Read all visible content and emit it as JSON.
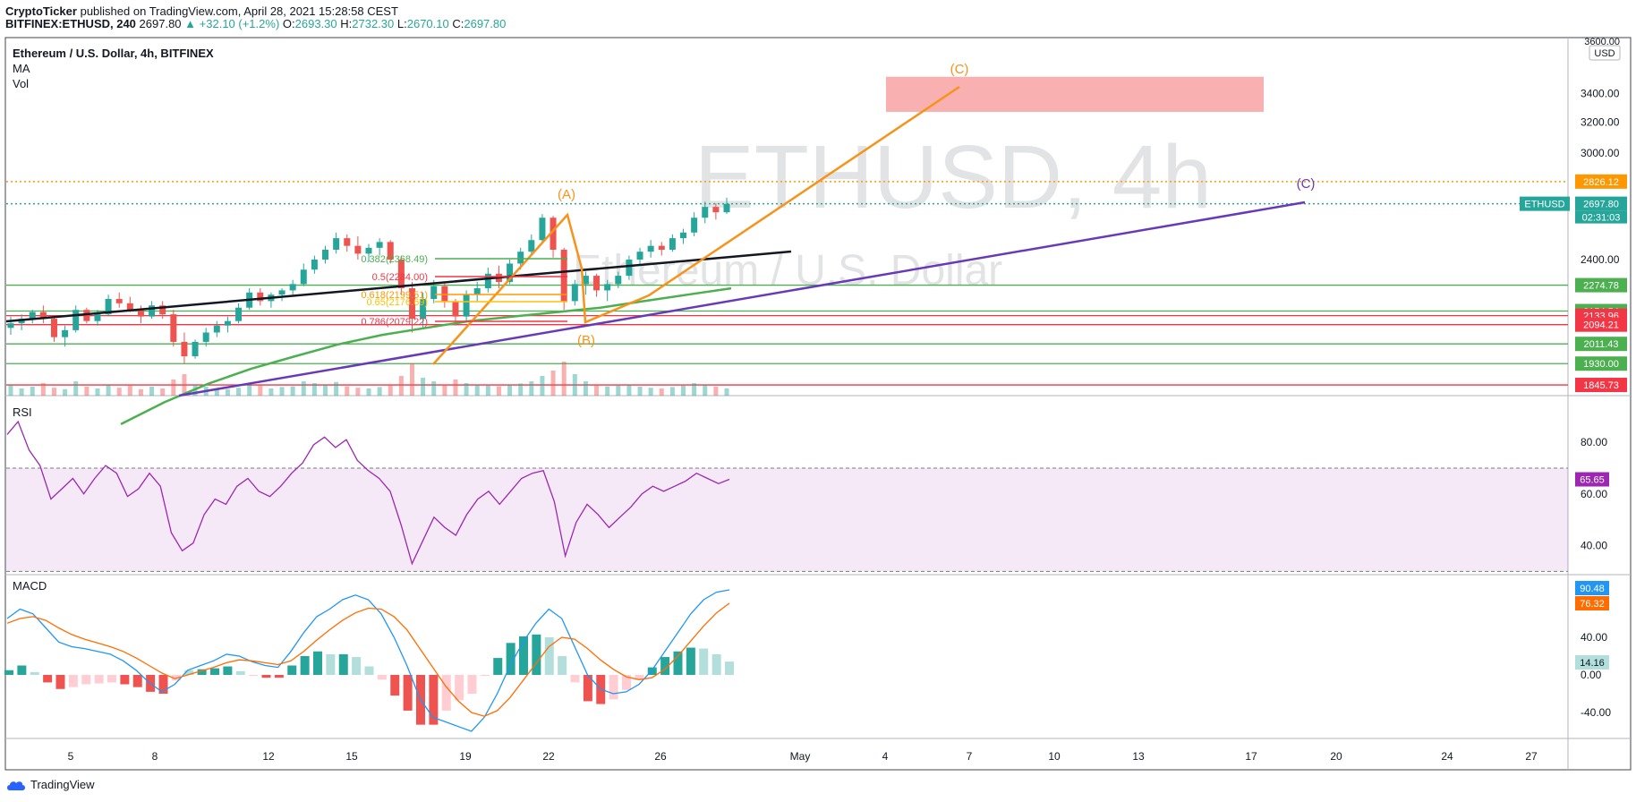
{
  "header": {
    "publisher": "CryptoTicker",
    "published_text": "published on TradingView.com, April 28, 2021 15:28:58 CEST",
    "symbol": "BITFINEX:ETHUSD, 240",
    "last": "2697.80",
    "change": "▲ +32.10 (+1.2%)",
    "o_label": "O:",
    "o": "2693.30",
    "h_label": "H:",
    "h": "2732.30",
    "l_label": "L:",
    "l": "2670.10",
    "c_label": "C:",
    "c": "2697.80"
  },
  "legend": {
    "title": "Ethereum / U.S. Dollar, 4h, BITFINEX",
    "ma": "MA",
    "vol": "Vol",
    "rsi": "RSI",
    "macd": "MACD"
  },
  "watermark": {
    "big": "ETHUSD, 4h",
    "small": "Ethereum / U.S. Dollar"
  },
  "footer": {
    "brand": "TradingView"
  },
  "colors": {
    "up": "#26a69a",
    "down": "#ef5350",
    "orange": "#f7931a",
    "purple": "#673ab7",
    "green": "#4caf50",
    "red": "#f23645",
    "rsi": "#9c27b0",
    "macd": "#2196f3",
    "signal": "#ff6d00"
  },
  "chart_data": {
    "type": "candlestick",
    "x_ticks": [
      "5",
      "8",
      "12",
      "15",
      "19",
      "22",
      "26",
      "May",
      "4",
      "7",
      "10",
      "13",
      "17",
      "20",
      "24",
      "27"
    ],
    "price_axis": {
      "currency": "USD",
      "ticks": [
        3600,
        3400,
        3200,
        3000,
        2400
      ],
      "tick_labels": [
        "3600.00",
        "3400.00",
        "3200.00",
        "3000.00",
        "2400.00"
      ]
    },
    "price_scale": "log",
    "ohlc_approx": [
      [
        2080,
        2130,
        2050,
        2100
      ],
      [
        2100,
        2140,
        2070,
        2120
      ],
      [
        2120,
        2160,
        2100,
        2150
      ],
      [
        2150,
        2180,
        2100,
        2120
      ],
      [
        2120,
        2130,
        2020,
        2040
      ],
      [
        2040,
        2090,
        2000,
        2070
      ],
      [
        2070,
        2180,
        2060,
        2160
      ],
      [
        2160,
        2170,
        2100,
        2110
      ],
      [
        2110,
        2160,
        2090,
        2140
      ],
      [
        2140,
        2230,
        2130,
        2210
      ],
      [
        2210,
        2240,
        2170,
        2190
      ],
      [
        2190,
        2220,
        2150,
        2160
      ],
      [
        2160,
        2180,
        2100,
        2130
      ],
      [
        2130,
        2200,
        2120,
        2180
      ],
      [
        2180,
        2200,
        2120,
        2140
      ],
      [
        2140,
        2160,
        2000,
        2020
      ],
      [
        2020,
        2060,
        1930,
        1960
      ],
      [
        1960,
        2030,
        1950,
        2020
      ],
      [
        2020,
        2080,
        2000,
        2060
      ],
      [
        2060,
        2110,
        2040,
        2090
      ],
      [
        2090,
        2130,
        2060,
        2110
      ],
      [
        2110,
        2190,
        2100,
        2170
      ],
      [
        2170,
        2260,
        2160,
        2240
      ],
      [
        2240,
        2260,
        2180,
        2200
      ],
      [
        2200,
        2240,
        2170,
        2230
      ],
      [
        2230,
        2260,
        2200,
        2250
      ],
      [
        2250,
        2300,
        2230,
        2280
      ],
      [
        2280,
        2380,
        2270,
        2350
      ],
      [
        2350,
        2420,
        2330,
        2400
      ],
      [
        2400,
        2470,
        2380,
        2450
      ],
      [
        2450,
        2540,
        2430,
        2510
      ],
      [
        2510,
        2530,
        2440,
        2470
      ],
      [
        2470,
        2520,
        2400,
        2430
      ],
      [
        2430,
        2480,
        2390,
        2460
      ],
      [
        2460,
        2510,
        2420,
        2490
      ],
      [
        2490,
        2500,
        2380,
        2400
      ],
      [
        2400,
        2420,
        2230,
        2260
      ],
      [
        2260,
        2290,
        2060,
        2120
      ],
      [
        2120,
        2240,
        2080,
        2210
      ],
      [
        2210,
        2300,
        2190,
        2270
      ],
      [
        2270,
        2290,
        2170,
        2200
      ],
      [
        2200,
        2210,
        2090,
        2130
      ],
      [
        2130,
        2250,
        2110,
        2230
      ],
      [
        2230,
        2290,
        2200,
        2260
      ],
      [
        2260,
        2360,
        2240,
        2330
      ],
      [
        2330,
        2370,
        2260,
        2290
      ],
      [
        2290,
        2400,
        2280,
        2380
      ],
      [
        2380,
        2460,
        2350,
        2440
      ],
      [
        2440,
        2530,
        2420,
        2500
      ],
      [
        2500,
        2640,
        2480,
        2620
      ],
      [
        2620,
        2630,
        2410,
        2450
      ],
      [
        2450,
        2460,
        2160,
        2200
      ],
      [
        2200,
        2300,
        2180,
        2280
      ],
      [
        2280,
        2340,
        2230,
        2320
      ],
      [
        2320,
        2330,
        2220,
        2250
      ],
      [
        2250,
        2300,
        2200,
        2280
      ],
      [
        2280,
        2340,
        2260,
        2320
      ],
      [
        2320,
        2420,
        2300,
        2400
      ],
      [
        2400,
        2460,
        2370,
        2440
      ],
      [
        2440,
        2500,
        2410,
        2470
      ],
      [
        2470,
        2490,
        2420,
        2450
      ],
      [
        2450,
        2530,
        2440,
        2510
      ],
      [
        2510,
        2560,
        2480,
        2540
      ],
      [
        2540,
        2650,
        2520,
        2620
      ],
      [
        2620,
        2710,
        2590,
        2680
      ],
      [
        2680,
        2700,
        2610,
        2650
      ],
      [
        2650,
        2732,
        2640,
        2697
      ]
    ],
    "moving_average_approx": [
      1700,
      1780,
      1850,
      1910,
      1960,
      2010,
      2050,
      2080,
      2110,
      2130,
      2150,
      2170,
      2200,
      2230,
      2260
    ],
    "volume_approx": [
      30,
      20,
      25,
      35,
      22,
      18,
      40,
      25,
      20,
      30,
      22,
      28,
      18,
      25,
      20,
      45,
      60,
      30,
      25,
      20,
      18,
      22,
      35,
      28,
      20,
      24,
      26,
      40,
      35,
      30,
      38,
      26,
      22,
      20,
      24,
      28,
      55,
      90,
      50,
      40,
      30,
      45,
      35,
      30,
      28,
      26,
      30,
      34,
      40,
      55,
      70,
      95,
      60,
      40,
      30,
      26,
      28,
      30,
      25,
      22,
      20,
      24,
      28,
      35,
      30,
      25,
      20
    ],
    "price_lines": [
      {
        "label": "2826.12",
        "value": 2826.12,
        "color": "#ff9800",
        "style": "dotted"
      },
      {
        "label": "2697.80",
        "value": 2697.8,
        "color": "#26a69a",
        "style": "dotted",
        "tag": "ETHUSD",
        "countdown": "02:31:03"
      },
      {
        "label": "2274.78",
        "value": 2274.78,
        "color": "#4caf50"
      },
      {
        "label": "2154.54",
        "value": 2154.54,
        "color": "#4caf50"
      },
      {
        "label": "2133.96",
        "value": 2133.96,
        "color": "#f23645"
      },
      {
        "label": "2094.21",
        "value": 2094.21,
        "color": "#f23645"
      },
      {
        "label": "2011.43",
        "value": 2011.43,
        "color": "#4caf50"
      },
      {
        "label": "1930.00",
        "value": 1930.0,
        "color": "#4caf50"
      },
      {
        "label": "1845.73",
        "value": 1845.73,
        "color": "#f23645"
      }
    ],
    "fib_levels": [
      {
        "label": "0.382(2368.49)",
        "color": "#4caf50"
      },
      {
        "label": "0.5(2284.00)",
        "color": "#f23645"
      },
      {
        "label": "0.618(2199.51)",
        "color": "#ff9800"
      },
      {
        "label": "0.65(2176.69)",
        "color": "#ffc107"
      },
      {
        "label": "0.786(2079.22)",
        "color": "#f23645"
      }
    ],
    "wave_labels": [
      "(A)",
      "(B)",
      "(C)",
      "(C)"
    ],
    "target_zone": {
      "low": 3270,
      "high": 3520
    },
    "rsi": {
      "name": "RSI",
      "value_label": "65.65",
      "ticks": [
        80,
        60,
        40
      ],
      "tick_labels": [
        "80.00",
        "60.00",
        "40.00"
      ],
      "band": [
        30,
        70
      ],
      "values_approx": [
        83,
        88,
        77,
        71,
        58,
        62,
        66,
        60,
        66,
        71,
        68,
        59,
        62,
        68,
        63,
        45,
        38,
        41,
        52,
        58,
        56,
        63,
        66,
        61,
        59,
        63,
        68,
        72,
        79,
        82,
        78,
        81,
        73,
        69,
        66,
        61,
        48,
        33,
        42,
        51,
        47,
        44,
        52,
        58,
        61,
        56,
        61,
        66,
        68,
        69,
        57,
        36,
        49,
        56,
        52,
        47,
        51,
        55,
        60,
        63,
        61,
        63,
        65,
        68,
        66,
        64,
        65.65
      ]
    },
    "macd": {
      "name": "MACD",
      "macd_label": "90.48",
      "signal_label": "76.32",
      "hist_label": "14.16",
      "ticks": [
        40,
        0,
        -40
      ],
      "tick_labels": [
        "40.00",
        "0.00",
        "-40.00"
      ],
      "macd_approx": [
        60,
        70,
        65,
        50,
        35,
        30,
        28,
        25,
        22,
        15,
        5,
        -8,
        -18,
        -10,
        5,
        10,
        15,
        22,
        20,
        14,
        10,
        8,
        25,
        45,
        62,
        70,
        80,
        85,
        80,
        65,
        40,
        10,
        -25,
        -45,
        -50,
        -55,
        -60,
        -45,
        -20,
        10,
        35,
        55,
        70,
        60,
        30,
        0,
        -15,
        -20,
        -18,
        -10,
        5,
        25,
        45,
        65,
        80,
        88,
        90.48
      ],
      "signal_approx": [
        55,
        60,
        62,
        58,
        50,
        43,
        38,
        34,
        30,
        25,
        18,
        10,
        2,
        -4,
        0,
        4,
        8,
        13,
        16,
        15,
        13,
        11,
        15,
        25,
        37,
        48,
        58,
        66,
        71,
        70,
        62,
        48,
        28,
        8,
        -12,
        -28,
        -40,
        -44,
        -38,
        -24,
        -6,
        12,
        30,
        40,
        38,
        28,
        16,
        6,
        -2,
        -5,
        -3,
        6,
        20,
        36,
        52,
        66,
        76.32
      ],
      "hist_approx": [
        5,
        10,
        3,
        -8,
        -15,
        -13,
        -10,
        -9,
        -8,
        -10,
        -13,
        -18,
        -20,
        -6,
        5,
        6,
        7,
        9,
        4,
        -1,
        -3,
        -3,
        10,
        20,
        25,
        22,
        22,
        19,
        9,
        -5,
        -22,
        -38,
        -53,
        -53,
        -38,
        -27,
        -20,
        -1,
        18,
        34,
        41,
        43,
        40,
        20,
        -8,
        -28,
        -31,
        -26,
        -16,
        -5,
        8,
        19,
        25,
        29,
        28,
        22,
        14.16
      ]
    }
  }
}
